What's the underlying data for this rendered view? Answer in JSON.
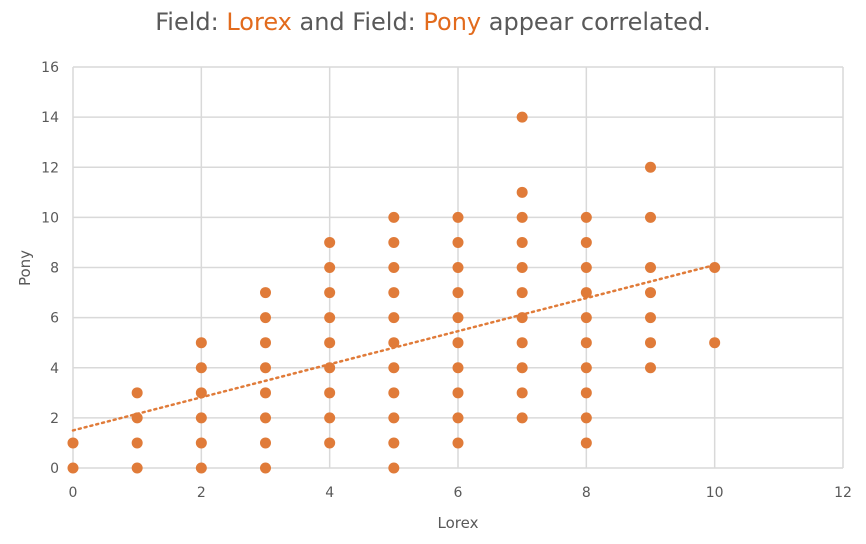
{
  "title": {
    "prefix": "Field: ",
    "field_x": "Lorex",
    "middle": " and Field: ",
    "field_y": "Pony",
    "suffix": " appear correlated."
  },
  "colors": {
    "accent": "#e26b1d",
    "point": "#e07b39",
    "grid": "#d9d9d9",
    "text": "#595959"
  },
  "chart_data": {
    "type": "scatter",
    "title": "Field: Lorex and Field: Pony appear correlated.",
    "xlabel": "Lorex",
    "ylabel": "Pony",
    "xlim": [
      0,
      12
    ],
    "ylim": [
      0,
      16
    ],
    "xticks": [
      "0",
      "2",
      "4",
      "6",
      "8",
      "10",
      "12"
    ],
    "yticks": [
      "0",
      "2",
      "4",
      "6",
      "8",
      "10",
      "12",
      "14",
      "16"
    ],
    "grid": true,
    "points": [
      [
        0,
        0
      ],
      [
        0,
        1
      ],
      [
        1,
        0
      ],
      [
        1,
        1
      ],
      [
        1,
        2
      ],
      [
        1,
        3
      ],
      [
        2,
        0
      ],
      [
        2,
        1
      ],
      [
        2,
        2
      ],
      [
        2,
        3
      ],
      [
        2,
        4
      ],
      [
        2,
        5
      ],
      [
        3,
        0
      ],
      [
        3,
        1
      ],
      [
        3,
        2
      ],
      [
        3,
        3
      ],
      [
        3,
        4
      ],
      [
        3,
        5
      ],
      [
        3,
        6
      ],
      [
        3,
        7
      ],
      [
        4,
        1
      ],
      [
        4,
        2
      ],
      [
        4,
        3
      ],
      [
        4,
        4
      ],
      [
        4,
        5
      ],
      [
        4,
        6
      ],
      [
        4,
        7
      ],
      [
        4,
        8
      ],
      [
        4,
        9
      ],
      [
        5,
        0
      ],
      [
        5,
        1
      ],
      [
        5,
        2
      ],
      [
        5,
        3
      ],
      [
        5,
        4
      ],
      [
        5,
        5
      ],
      [
        5,
        6
      ],
      [
        5,
        7
      ],
      [
        5,
        8
      ],
      [
        5,
        9
      ],
      [
        5,
        10
      ],
      [
        6,
        1
      ],
      [
        6,
        2
      ],
      [
        6,
        3
      ],
      [
        6,
        4
      ],
      [
        6,
        5
      ],
      [
        6,
        6
      ],
      [
        6,
        7
      ],
      [
        6,
        8
      ],
      [
        6,
        9
      ],
      [
        6,
        10
      ],
      [
        7,
        2
      ],
      [
        7,
        3
      ],
      [
        7,
        4
      ],
      [
        7,
        5
      ],
      [
        7,
        6
      ],
      [
        7,
        7
      ],
      [
        7,
        8
      ],
      [
        7,
        9
      ],
      [
        7,
        10
      ],
      [
        7,
        11
      ],
      [
        7,
        14
      ],
      [
        8,
        1
      ],
      [
        8,
        2
      ],
      [
        8,
        3
      ],
      [
        8,
        4
      ],
      [
        8,
        5
      ],
      [
        8,
        6
      ],
      [
        8,
        7
      ],
      [
        8,
        8
      ],
      [
        8,
        9
      ],
      [
        8,
        10
      ],
      [
        9,
        4
      ],
      [
        9,
        5
      ],
      [
        9,
        6
      ],
      [
        9,
        7
      ],
      [
        9,
        8
      ],
      [
        9,
        10
      ],
      [
        9,
        12
      ],
      [
        10,
        5
      ],
      [
        10,
        8
      ]
    ],
    "trendline": {
      "style": "dotted",
      "x": [
        0,
        10
      ],
      "y": [
        1.5,
        8.1
      ]
    }
  }
}
